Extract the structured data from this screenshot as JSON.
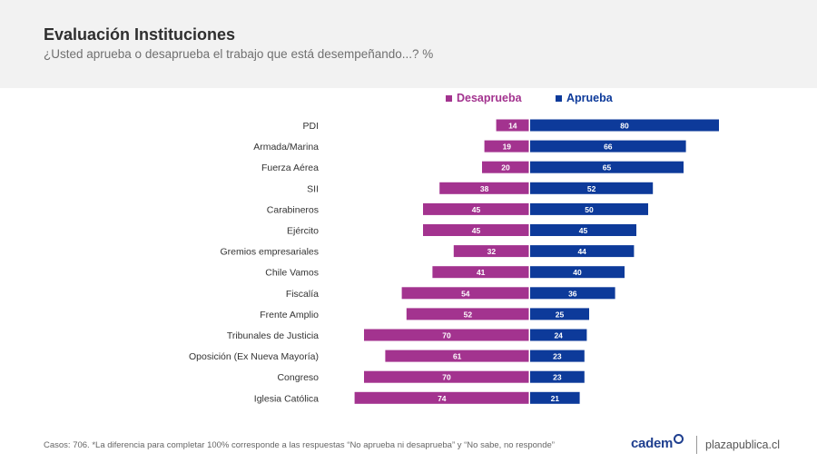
{
  "header": {
    "title": "Evaluación Instituciones",
    "subtitle": "¿Usted aprueba o desaprueba el trabajo que está desempeñando...? %"
  },
  "colors": {
    "desaprueba": "#a3338f",
    "aprueba": "#0d3a9a",
    "header_bg": "#f2f2f2"
  },
  "legend": {
    "desaprueba": "Desaprueba",
    "aprueba": "Aprueba"
  },
  "chart_data": {
    "type": "bar",
    "orientation": "horizontal-diverging",
    "title": "Evaluación Instituciones",
    "categories": [
      "PDI",
      "Armada/Marina",
      "Fuerza Aérea",
      "SII",
      "Carabineros",
      "Ejército",
      "Gremios empresariales",
      "Chile Vamos",
      "Fiscalía",
      "Frente Amplio",
      "Tribunales de Justicia",
      "Oposición (Ex Nueva Mayoría)",
      "Congreso",
      "Iglesia Católica"
    ],
    "series": [
      {
        "name": "Desaprueba",
        "values": [
          14,
          19,
          20,
          38,
          45,
          45,
          32,
          41,
          54,
          52,
          70,
          61,
          70,
          74
        ]
      },
      {
        "name": "Aprueba",
        "values": [
          80,
          66,
          65,
          52,
          50,
          45,
          44,
          40,
          36,
          25,
          24,
          23,
          23,
          21
        ]
      }
    ],
    "xlim": [
      0,
      100
    ],
    "legend_position": "top-center"
  },
  "footer": {
    "note": "Casos: 706. *La diferencia para completar 100% corresponde a las respuestas “No aprueba ni desaprueba” y “No sabe, no responde”",
    "brand": "cadem",
    "site": "plazapublica.cl"
  }
}
